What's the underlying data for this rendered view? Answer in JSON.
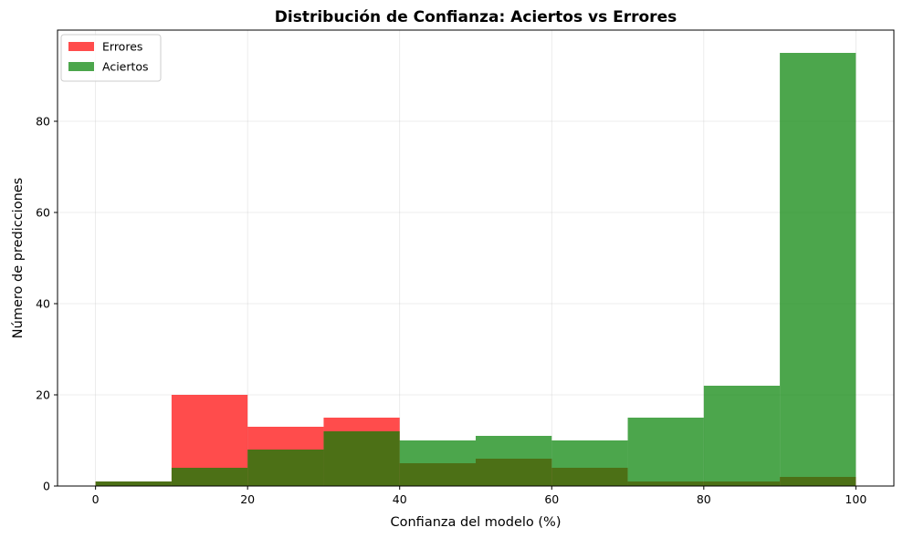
{
  "chart_data": {
    "type": "bar",
    "title": "Distribución de Confianza: Aciertos vs Errores",
    "xlabel": "Confianza del modelo (%)",
    "ylabel": "Número de predicciones",
    "xlim": [
      -5,
      105
    ],
    "ylim": [
      0,
      100
    ],
    "xticks": [
      0,
      20,
      40,
      60,
      80,
      100
    ],
    "yticks": [
      0,
      20,
      40,
      60,
      80
    ],
    "grid": true,
    "legend_position": "top-left",
    "bin_edges": [
      0,
      10,
      20,
      30,
      40,
      50,
      60,
      70,
      80,
      90,
      100
    ],
    "series": [
      {
        "name": "Errores",
        "color": "#ff0000",
        "opacity": 0.7,
        "values": [
          1,
          20,
          13,
          15,
          5,
          6,
          4,
          1,
          1,
          2
        ]
      },
      {
        "name": "Aciertos",
        "color": "#008000",
        "opacity": 0.7,
        "values": [
          1,
          4,
          8,
          12,
          10,
          11,
          10,
          15,
          22,
          95
        ]
      }
    ]
  }
}
